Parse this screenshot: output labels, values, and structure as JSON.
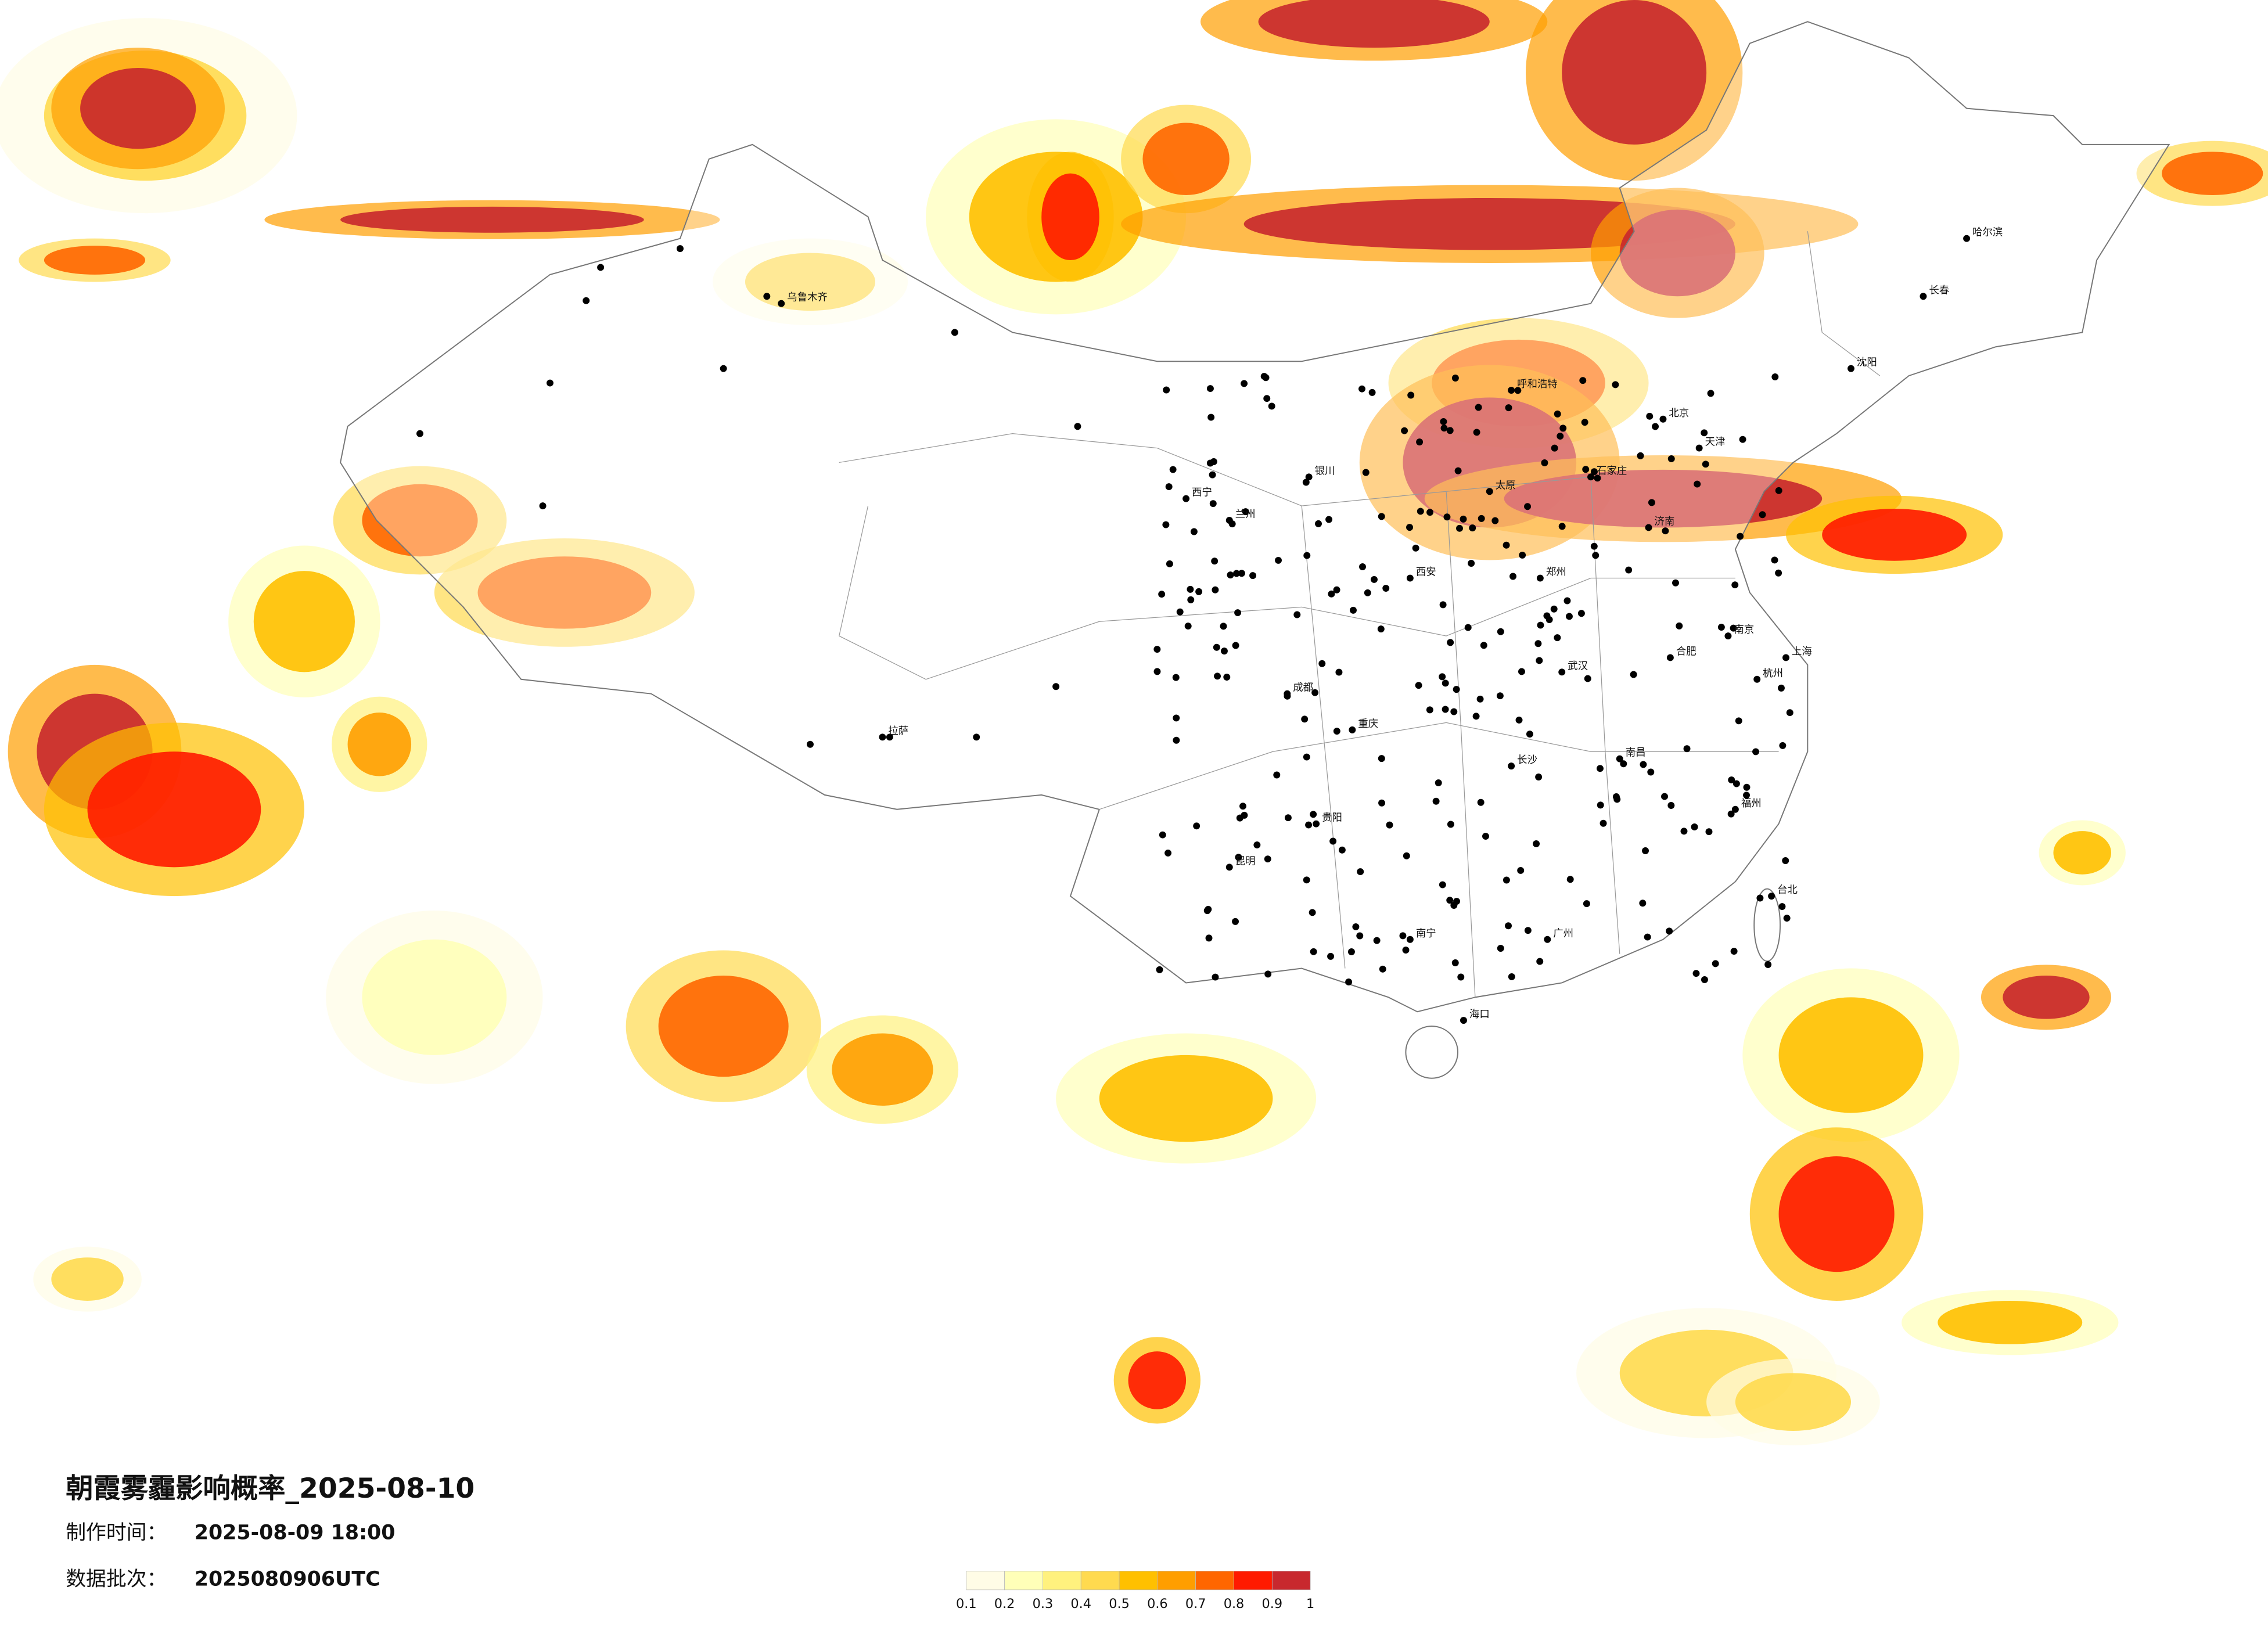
{
  "map": {
    "title": "朝霞雾霾影响概率_2025-08-10",
    "made_time": {
      "label": "制作时间：",
      "value": "2025-08-09 18:00"
    },
    "batch": {
      "label": "数据批次：",
      "value": "2025080906UTC"
    },
    "legend": {
      "ticks": [
        0.1,
        0.2,
        0.3,
        0.4,
        0.5,
        0.6,
        0.7,
        0.8,
        0.9,
        1
      ],
      "colors": [
        "#fffce6",
        "#ffffb8",
        "#fff17e",
        "#ffda4f",
        "#ffc000",
        "#ff9e00",
        "#ff6600",
        "#ff1a00",
        "#c8282e"
      ]
    },
    "cities": [
      "北京",
      "天津",
      "石家庄",
      "太原",
      "呼和浩特",
      "郑州",
      "济南",
      "上海",
      "南京",
      "武汉",
      "长沙",
      "广州",
      "成都",
      "重庆",
      "西安",
      "昆明",
      "贵阳",
      "南宁",
      "海口",
      "福州",
      "杭州",
      "合肥",
      "南昌",
      "兰州",
      "银川",
      "西宁",
      "乌鲁木齐",
      "拉萨",
      "哈尔滨",
      "长春",
      "沈阳",
      "台北"
    ]
  }
}
